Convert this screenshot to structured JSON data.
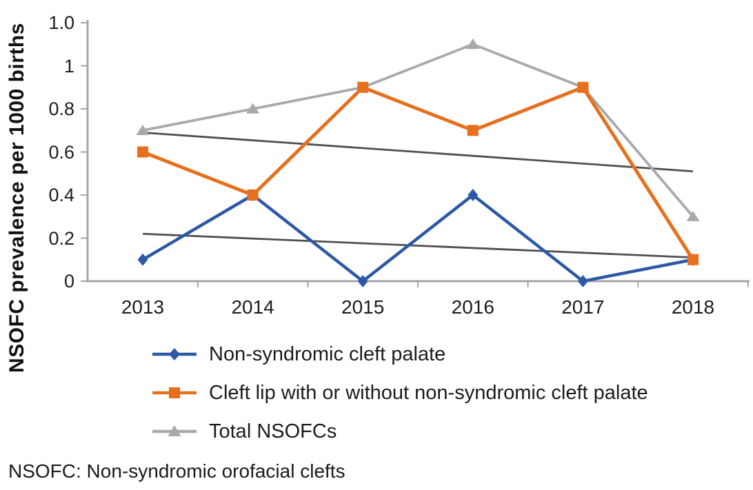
{
  "chart_data": {
    "type": "line",
    "title": "",
    "xlabel": "",
    "ylabel": "NSOFC prevalence per 1000 births",
    "categories": [
      "2013",
      "2014",
      "2015",
      "2016",
      "2017",
      "2018"
    ],
    "series": [
      {
        "name": "Non-syndromic cleft palate",
        "marker": "diamond",
        "color": "#2C58A6",
        "values": [
          0.1,
          0.4,
          0.0,
          0.4,
          0.0,
          0.1
        ]
      },
      {
        "name": "Cleft lip with or without non-syndromic cleft palate",
        "marker": "square",
        "color": "#E6701E",
        "values": [
          0.6,
          0.4,
          0.9,
          0.7,
          0.9,
          0.1
        ]
      },
      {
        "name": "Total NSOFCs",
        "marker": "triangle",
        "color": "#A7A9AC",
        "values": [
          0.7,
          0.8,
          0.9,
          1.1,
          0.9,
          0.3
        ]
      }
    ],
    "trend_lines": [
      {
        "from_category": "2013",
        "to_category": "2018",
        "start_value": 0.69,
        "end_value": 0.51,
        "color": "#4E4F52"
      },
      {
        "from_category": "2013",
        "to_category": "2018",
        "start_value": 0.22,
        "end_value": 0.11,
        "color": "#4E4F52"
      }
    ],
    "y_tick_labels": [
      "1.0",
      "1",
      "0.8",
      "0.6",
      "0.4",
      "0.2",
      "0"
    ],
    "ylim": [
      0,
      1.2
    ],
    "grid": false,
    "legend_position": "bottom-left",
    "axis_color": "#A3A5A8",
    "text_color": "#1c1c1c",
    "footnote": "NSOFC: Non-syndromic orofacial clefts"
  }
}
